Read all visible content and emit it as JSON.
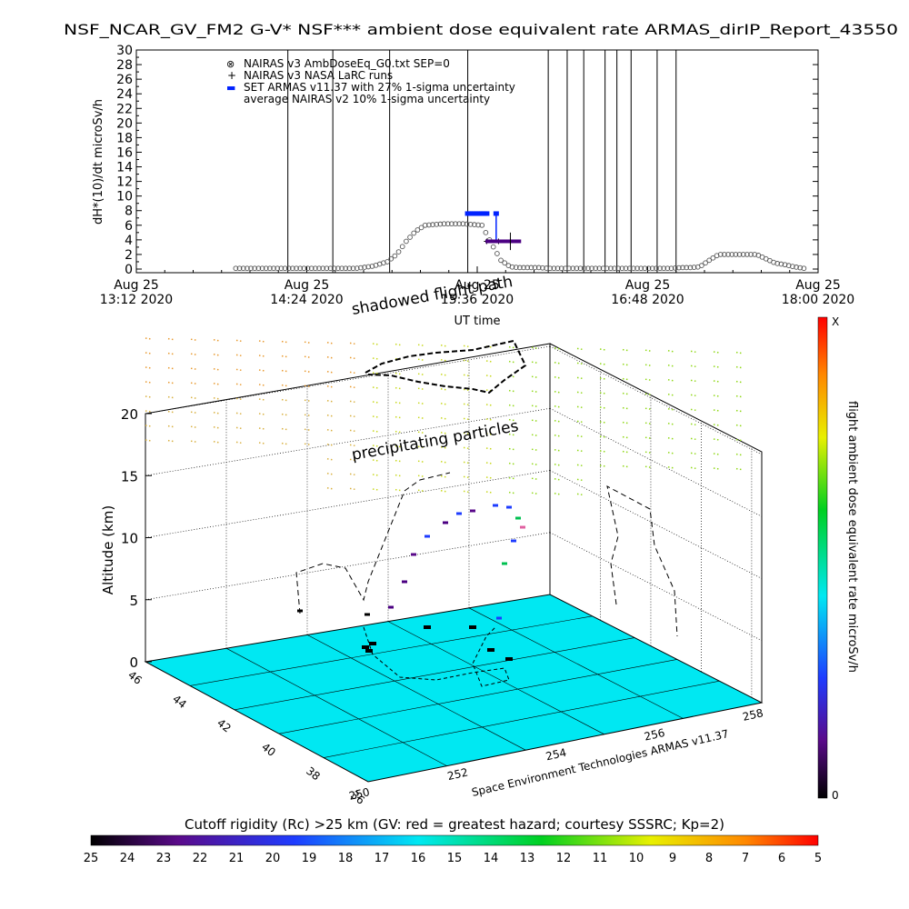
{
  "chart_data": [
    {
      "type": "scatter",
      "title": "NSF_NCAR_GV_FM2 G-V* NSF*** ambient dose equivalent rate ARMAS_dirIP_Report_43550",
      "ylabel": "dH*(10)/dt microSv/h",
      "xlabel": "UT time",
      "ylim": [
        0,
        30
      ],
      "yticks": [
        "0",
        "2",
        "4",
        "6",
        "8",
        "10",
        "12",
        "14",
        "16",
        "18",
        "20",
        "22",
        "24",
        "26",
        "28",
        "30"
      ],
      "xlim": [
        "2020-08-25 13:12",
        "2020-08-25 18:00"
      ],
      "xticks": [
        {
          "date": "Aug 25",
          "time": "13:12 2020"
        },
        {
          "date": "Aug 25",
          "time": "14:24 2020"
        },
        {
          "date": "Aug 25",
          "time": "15:36 2020"
        },
        {
          "date": "Aug 25",
          "time": "16:48 2020"
        },
        {
          "date": "Aug 25",
          "time": "18:00 2020"
        }
      ],
      "legend": [
        {
          "symbol": "⊗",
          "label": "NAIRAS v3 AmbDoseEq_G0.txt SEP=0"
        },
        {
          "symbol": "+",
          "label": "NAIRAS v3 NASA LaRC runs"
        },
        {
          "symbol": "▬",
          "label": "SET ARMAS v11.37 with 27% 1-sigma uncertainty"
        },
        {
          "symbol": "",
          "label": "average NAIRAS v2 10% 1-sigma uncertainty"
        }
      ],
      "legend_position": "top-left",
      "series": [
        {
          "name": "NAIRAS v3 AmbDoseEq_G0.txt SEP=0",
          "color": "#555555",
          "x": [
            "13:54",
            "14:05",
            "14:15",
            "14:25",
            "14:35",
            "14:45",
            "14:52",
            "14:58",
            "15:02",
            "15:06",
            "15:10",
            "15:14",
            "15:18",
            "15:22",
            "15:26",
            "15:30",
            "15:34",
            "15:38",
            "15:42",
            "15:46",
            "15:50",
            "15:54",
            "15:58",
            "16:02",
            "16:06",
            "16:10",
            "16:14",
            "16:18",
            "16:22",
            "16:26",
            "16:30",
            "16:34",
            "16:38",
            "16:42",
            "16:46",
            "16:50",
            "16:54",
            "16:58",
            "17:02",
            "17:06",
            "17:10",
            "17:14",
            "17:18",
            "17:22",
            "17:26",
            "17:30",
            "17:34",
            "17:38",
            "17:42",
            "17:46",
            "17:50",
            "17:54"
          ],
          "y": [
            0.1,
            0.1,
            0.1,
            0.1,
            0.1,
            0.1,
            0.4,
            1.0,
            2.0,
            3.8,
            5.2,
            6.0,
            6.1,
            6.2,
            6.2,
            6.2,
            6.1,
            6.0,
            3.5,
            1.2,
            0.3,
            0.2,
            0.2,
            0.2,
            0.1,
            0.1,
            0.1,
            0.1,
            0.1,
            0.1,
            0.1,
            0.1,
            0.1,
            0.1,
            0.1,
            0.1,
            0.1,
            0.1,
            0.2,
            0.2,
            0.3,
            1.2,
            2.0,
            2.0,
            2.0,
            2.0,
            2.0,
            1.4,
            0.8,
            0.6,
            0.3,
            0.1
          ]
        },
        {
          "name": "NAIRAS v3 NASA LaRC runs",
          "color": "#000000",
          "x": [
            "15:40",
            "15:45",
            "15:50"
          ],
          "y": [
            3.8,
            3.8,
            3.8
          ]
        },
        {
          "name": "SET ARMAS v11.37 with 27% 1-sigma uncertainty",
          "color": "#0022ff",
          "x": [
            "15:32",
            "15:33",
            "15:34",
            "15:35",
            "15:36",
            "15:37",
            "15:38",
            "15:39",
            "15:40",
            "15:44"
          ],
          "y": [
            7.6,
            7.6,
            7.6,
            7.6,
            7.6,
            7.6,
            7.6,
            7.6,
            7.6,
            7.6
          ]
        },
        {
          "name": "average NAIRAS v2 10% 1-sigma uncertainty",
          "color": "#4b0082",
          "x": [
            "15:41",
            "15:44",
            "15:47",
            "15:50",
            "15:53"
          ],
          "y": [
            3.8,
            3.8,
            3.8,
            3.8,
            3.8
          ]
        }
      ],
      "vertical_lines_at": [
        "14:16",
        "14:35",
        "14:59",
        "15:32",
        "16:06",
        "16:14",
        "16:21",
        "16:30",
        "16:35",
        "16:41",
        "16:52",
        "17:00"
      ]
    },
    {
      "type": "scatter",
      "title": "",
      "annotations": [
        "shadowed flight path",
        "precipitating particles"
      ],
      "zlabel": "Altitude (km)",
      "zticks": [
        "0",
        "5",
        "10",
        "15",
        "20"
      ],
      "latitude_ticks": [
        "36",
        "38",
        "40",
        "42",
        "44",
        "46"
      ],
      "longitude_ticks": [
        "250",
        "252",
        "254",
        "256",
        "258"
      ],
      "credit": "Space Environment Technologies ARMAS v11.37",
      "colorbar": {
        "label": "flight ambient dose equivalent rate microSv/h",
        "top_label": "X",
        "bottom_label": "0"
      },
      "grid": true
    }
  ],
  "bottom_colorbar": {
    "title": "Cutoff rigidity (Rc) >25 km (GV: red = greatest hazard; courtesy SSSRC; Kp=2)",
    "ticks": [
      "25",
      "24",
      "23",
      "22",
      "21",
      "20",
      "19",
      "18",
      "17",
      "16",
      "15",
      "14",
      "13",
      "12",
      "11",
      "10",
      "9",
      "8",
      "7",
      "6",
      "5"
    ]
  }
}
